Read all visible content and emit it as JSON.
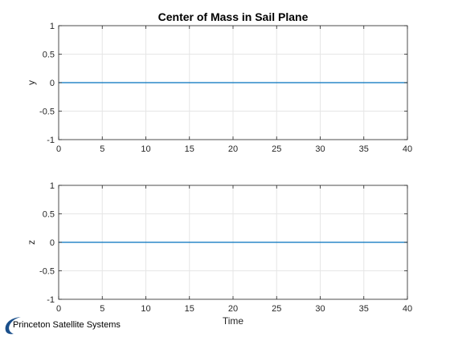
{
  "chart_data": [
    {
      "type": "line",
      "title": "Center of Mass in Sail Plane",
      "xlabel": "",
      "ylabel": "y",
      "xlim": [
        0,
        40
      ],
      "ylim": [
        -1,
        1
      ],
      "xticks": [
        0,
        5,
        10,
        15,
        20,
        25,
        30,
        35,
        40
      ],
      "yticks": [
        -1,
        -0.5,
        0,
        0.5,
        1
      ],
      "ytick_labels": [
        "-1",
        "-0.5",
        "0",
        "0.5",
        "1"
      ],
      "grid": true,
      "series": [
        {
          "x": [
            0,
            40
          ],
          "y": [
            0,
            0
          ],
          "color": "#0072BD"
        }
      ]
    },
    {
      "type": "line",
      "title": "",
      "xlabel": "Time",
      "ylabel": "z",
      "xlim": [
        0,
        40
      ],
      "ylim": [
        -1,
        1
      ],
      "xticks": [
        0,
        5,
        10,
        15,
        20,
        25,
        30,
        35,
        40
      ],
      "yticks": [
        -1,
        -0.5,
        0,
        0.5,
        1
      ],
      "ytick_labels": [
        "-1",
        "-0.5",
        "0",
        "0.5",
        "1"
      ],
      "grid": true,
      "series": [
        {
          "x": [
            0,
            40
          ],
          "y": [
            0,
            0
          ],
          "color": "#0072BD"
        }
      ]
    }
  ],
  "logo": {
    "text": "Princeton Satellite Systems",
    "color": "#1a4f8b",
    "icon": "swoosh-logo-icon"
  }
}
